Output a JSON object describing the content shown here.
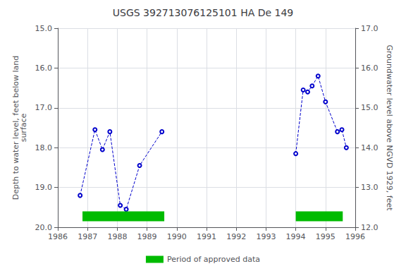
{
  "chart_data": {
    "type": "line",
    "title": "USGS 392713076125101 HA De 149",
    "ylabel": "Depth to water level, feet below land\nsurface",
    "y2label": "Groundwater level above NGVD 1929, feet",
    "series": [
      {
        "x": [
          1986.75,
          1987.25,
          1987.5,
          1987.75,
          1988.1,
          1988.3,
          1988.75,
          1989.5
        ],
        "values": [
          19.2,
          17.55,
          18.05,
          17.6,
          19.45,
          19.55,
          18.45,
          17.6
        ],
        "color": "#0000cc",
        "marker": "circle",
        "line_style": "dashed"
      },
      {
        "x": [
          1994.0,
          1994.25,
          1994.4,
          1994.55,
          1994.75,
          1995.0,
          1995.4,
          1995.55,
          1995.7
        ],
        "values": [
          18.15,
          16.55,
          16.6,
          16.45,
          16.2,
          16.85,
          17.6,
          17.55,
          18.0
        ],
        "color": "#0000cc",
        "marker": "circle",
        "line_style": "dashed"
      },
      {
        "name": "Period of approved data",
        "type": "band",
        "color": "#00bb00",
        "x_ranges": [
          [
            1986.83,
            1989.58
          ],
          [
            1994.0,
            1995.58
          ]
        ],
        "y_range": [
          19.6,
          19.85
        ]
      }
    ],
    "xlim": [
      1986,
      1996
    ],
    "xticks": [
      1986,
      1987,
      1988,
      1989,
      1990,
      1991,
      1992,
      1993,
      1994,
      1995,
      1996
    ],
    "ylim": [
      20.0,
      15.0
    ],
    "yticks": [
      {
        "value": 15,
        "label": "15.0"
      },
      {
        "value": 16,
        "label": "16.0"
      },
      {
        "value": 17,
        "label": "17.0"
      },
      {
        "value": 18,
        "label": "18.0"
      },
      {
        "value": 19,
        "label": "19.0"
      },
      {
        "value": 20,
        "label": "20.0"
      }
    ],
    "y2lim": [
      12.0,
      17.0
    ],
    "y2ticks": [
      {
        "value": 12,
        "label": "12.0"
      },
      {
        "value": 13,
        "label": "13.0"
      },
      {
        "value": 14,
        "label": "14.0"
      },
      {
        "value": 15,
        "label": "15.0"
      },
      {
        "value": 16,
        "label": "16.0"
      },
      {
        "value": 17,
        "label": "17.0"
      }
    ],
    "grid": true,
    "legend": "bottom"
  }
}
